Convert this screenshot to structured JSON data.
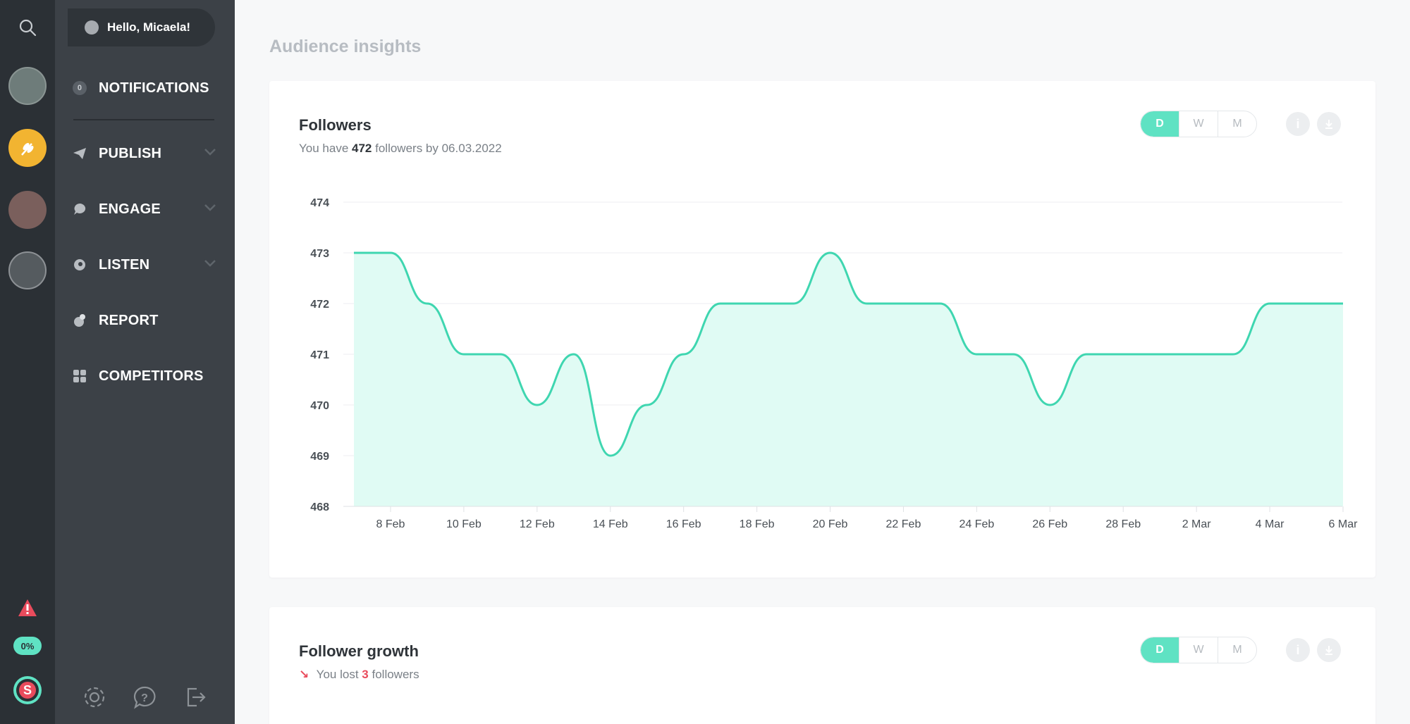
{
  "app": {
    "greeting": "Hello, Micaela!",
    "quota_badge": "0%",
    "notifications_count": "0"
  },
  "nav": {
    "items": [
      {
        "label": "NOTIFICATIONS",
        "icon": "badge-icon"
      },
      {
        "label": "PUBLISH",
        "icon": "paper-plane-icon"
      },
      {
        "label": "ENGAGE",
        "icon": "chat-bubble-icon"
      },
      {
        "label": "LISTEN",
        "icon": "ear-icon"
      },
      {
        "label": "REPORT",
        "icon": "pie-chart-icon"
      },
      {
        "label": "COMPETITORS",
        "icon": "grid-icon"
      }
    ]
  },
  "page": {
    "title": "Audience insights"
  },
  "followers_card": {
    "title": "Followers",
    "sub_prefix": "You have",
    "sub_count": "472",
    "sub_suffix": "followers by 06.03.2022",
    "periods": [
      "D",
      "W",
      "M"
    ],
    "active_period": "D"
  },
  "growth_card": {
    "title": "Follower growth",
    "sub_prefix": "You lost",
    "sub_count": "3",
    "sub_suffix": "followers",
    "periods": [
      "D",
      "W",
      "M"
    ]
  },
  "colors": {
    "accent": "#5fe2c3",
    "line": "#3fd6b0",
    "fill": "#e0fbf4",
    "negative": "#e94b5c"
  },
  "chart_data": {
    "type": "area",
    "title": "",
    "xlabel": "",
    "ylabel": "",
    "ylim": [
      468,
      474
    ],
    "yticks": [
      468,
      469,
      470,
      471,
      472,
      473,
      474
    ],
    "xtick_labels": [
      "8 Feb",
      "10 Feb",
      "12 Feb",
      "14 Feb",
      "16 Feb",
      "18 Feb",
      "20 Feb",
      "22 Feb",
      "24 Feb",
      "26 Feb",
      "28 Feb",
      "2 Mar",
      "4 Mar",
      "6 Mar"
    ],
    "x": [
      "7 Feb",
      "8 Feb",
      "9 Feb",
      "10 Feb",
      "11 Feb",
      "12 Feb",
      "13 Feb",
      "14 Feb",
      "15 Feb",
      "16 Feb",
      "17 Feb",
      "18 Feb",
      "19 Feb",
      "20 Feb",
      "21 Feb",
      "22 Feb",
      "23 Feb",
      "24 Feb",
      "25 Feb",
      "26 Feb",
      "27 Feb",
      "28 Feb",
      "1 Mar",
      "2 Mar",
      "3 Mar",
      "4 Mar",
      "5 Mar",
      "6 Mar"
    ],
    "values": [
      473,
      473,
      472,
      471,
      471,
      470,
      471,
      469,
      470,
      471,
      472,
      472,
      472,
      473,
      472,
      472,
      472,
      471,
      471,
      470,
      471,
      471,
      471,
      471,
      471,
      472,
      472,
      472
    ],
    "grid": true
  }
}
